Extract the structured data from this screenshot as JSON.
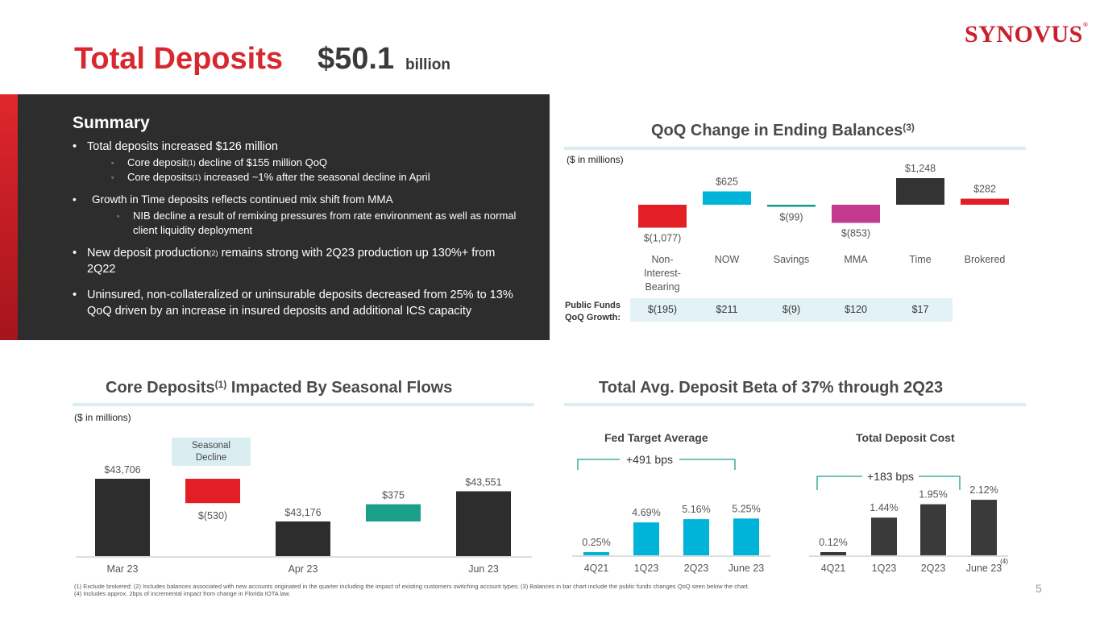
{
  "header": {
    "title": "Total Deposits",
    "amount": "$50.1",
    "amount_unit": "billion",
    "logo": "SYNOVUS",
    "logo_mark": "®"
  },
  "summary": {
    "heading": "Summary",
    "b1": "Total deposits increased $126 million",
    "b1_s1a": "Core deposit",
    "b1_s1_fn": "(1)",
    "b1_s1b": " decline of $155 million QoQ",
    "b1_s2a": "Core deposits",
    "b1_s2_fn": "(1)",
    "b1_s2b": " increased ~1% after the seasonal decline in April",
    "b2": "Growth in Time deposits reflects continued mix shift from MMA",
    "b2_s1": "NIB decline a result of remixing pressures from rate environment as well as normal client liquidity deployment",
    "b3a": "New deposit production",
    "b3_fn": "(2)",
    "b3b": " remains strong with 2Q23 production up 130%+ from 2Q22",
    "b4": "Uninsured, non-collateralized or uninsurable deposits decreased from 25% to 13% QoQ driven by an increase in insured deposits and additional ICS capacity",
    "bullet": "•",
    "sub_bullet": "◦"
  },
  "qoq": {
    "title": "QoQ Change in Ending Balances",
    "title_fn": "(3)",
    "unit_note": "($ in millions)",
    "public_funds_label_1": "Public Funds",
    "public_funds_label_2": "QoQ Growth:",
    "public_funds": [
      "$(195)",
      "$211",
      "$(9)",
      "$120",
      "$17"
    ]
  },
  "core": {
    "title": "Core Deposits",
    "title_fn": "(1)",
    "title_rest": " Impacted By Seasonal Flows",
    "unit_note": "($ in millions)",
    "seasonal_label": "Seasonal Decline"
  },
  "beta": {
    "title": "Total Avg. Deposit Beta of 37% through 2Q23",
    "fed_title": "Fed Target Average",
    "fed_bps": "+491 bps",
    "cost_title": "Total Deposit Cost",
    "cost_bps": "+183 bps",
    "cost_fn": "(4)"
  },
  "chart_data": [
    {
      "type": "bar",
      "title": "QoQ Change in Ending Balances",
      "categories": [
        "Non-Interest-Bearing",
        "NOW",
        "Savings",
        "MMA",
        "Time",
        "Brokered"
      ],
      "values": [
        -1077,
        625,
        -99,
        -853,
        1248,
        282
      ],
      "value_labels": [
        "$(1,077)",
        "$625",
        "$(99)",
        "$(853)",
        "$1,248",
        "$282"
      ],
      "colors": [
        "#e31f26",
        "#00b3d8",
        "#1aa08a",
        "#c43a8f",
        "#333333",
        "#e31f26"
      ],
      "ylabel": "$ in millions"
    },
    {
      "type": "bar",
      "title": "Core Deposits Impacted By Seasonal Flows",
      "categories": [
        "Mar 23",
        "",
        "Apr 23",
        "",
        "Jun 23"
      ],
      "values": [
        43706,
        -530,
        43176,
        375,
        43551
      ],
      "value_labels": [
        "$43,706",
        "$(530)",
        "$43,176",
        "$375",
        "$43,551"
      ],
      "colors": [
        "#2d2d2d",
        "#e31f26",
        "#2d2d2d",
        "#1aa08a",
        "#2d2d2d"
      ]
    },
    {
      "type": "bar",
      "title": "Fed Target Average",
      "categories": [
        "4Q21",
        "1Q23",
        "2Q23",
        "June 23"
      ],
      "values": [
        0.25,
        4.69,
        5.16,
        5.25
      ],
      "value_labels": [
        "0.25%",
        "4.69%",
        "5.16%",
        "5.25%"
      ],
      "color": "#00b3d8"
    },
    {
      "type": "bar",
      "title": "Total Deposit Cost",
      "categories": [
        "4Q21",
        "1Q23",
        "2Q23",
        "June 23"
      ],
      "values": [
        0.12,
        1.44,
        1.95,
        2.12
      ],
      "value_labels": [
        "0.12%",
        "1.44%",
        "1.95%",
        "2.12%"
      ],
      "color": "#3a3a3a"
    }
  ],
  "footnotes": {
    "line1": "(1) Exclude brokered; (2) Includes balances associated with new accounts originated in the quarter including the impact of existing customers switching account types; (3) Balances in bar chart include the public funds changes QoQ seen below the chart.",
    "line2": "(4) Includes approx. 2bps of incremental impact from change in Florida IOTA law."
  },
  "page_number": "5"
}
